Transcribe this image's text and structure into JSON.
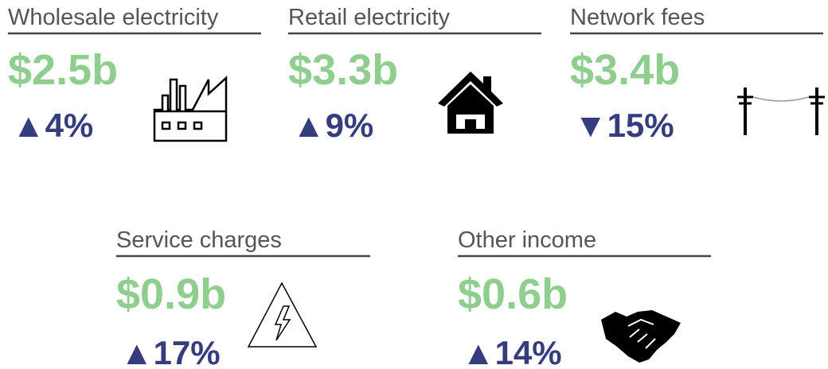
{
  "cards": [
    {
      "title": "Wholesale electricity",
      "value": "$2.5b",
      "change": "▲4%"
    },
    {
      "title": "Retail electricity",
      "value": "$3.3b",
      "change": "▲9%"
    },
    {
      "title": "Network fees",
      "value": "$3.4b",
      "change": "▼15%"
    },
    {
      "title": "Service charges",
      "value": "$0.9b",
      "change": "▲17%"
    },
    {
      "title": "Other income",
      "value": "$0.6b",
      "change": "▲14%"
    }
  ]
}
